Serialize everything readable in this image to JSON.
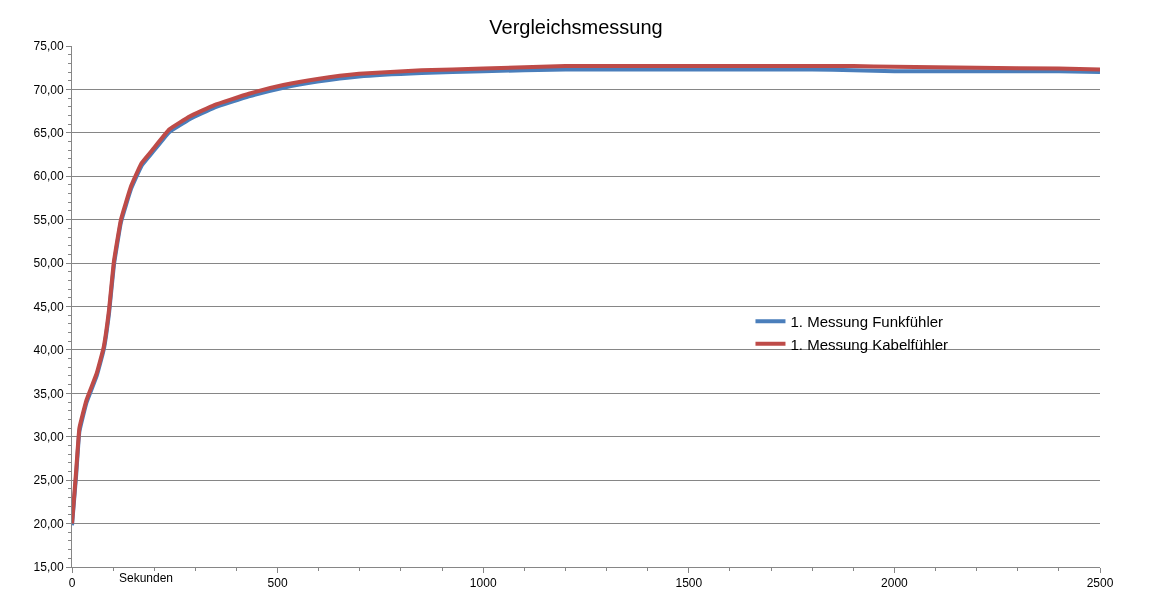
{
  "chart_data": {
    "type": "line",
    "title": "Vergleichsmessung",
    "xlabel": "Sekunden",
    "x": [
      0,
      10,
      18,
      35,
      60,
      77,
      90,
      102,
      119,
      144,
      169,
      195,
      237,
      287,
      346,
      430,
      514,
      597,
      698,
      850,
      1000,
      1200,
      1400,
      1600,
      1800,
      1900,
      2000,
      2200,
      2400,
      2500
    ],
    "series": [
      {
        "name": "1. Messung Funkfühler",
        "color": "#4a7ebb",
        "values": [
          19.8,
          25.5,
          30.6,
          33.9,
          37.0,
          40.0,
          44.2,
          49.8,
          54.7,
          58.6,
          61.2,
          62.7,
          65.1,
          66.6,
          67.9,
          69.2,
          70.2,
          70.9,
          71.5,
          71.9,
          72.1,
          72.3,
          72.3,
          72.3,
          72.3,
          72.2,
          72.1,
          72.1,
          72.1,
          72.0
        ]
      },
      {
        "name": "1. Messung Kabelfühler",
        "color": "#be4b48",
        "values": [
          20.0,
          26.0,
          31.0,
          34.2,
          37.3,
          40.3,
          44.6,
          50.2,
          55.0,
          58.9,
          61.5,
          63.0,
          65.4,
          66.9,
          68.2,
          69.5,
          70.5,
          71.2,
          71.8,
          72.2,
          72.4,
          72.7,
          72.7,
          72.7,
          72.7,
          72.7,
          72.6,
          72.5,
          72.4,
          72.3
        ]
      }
    ],
    "xlim": [
      0,
      2500
    ],
    "xticks": [
      0,
      500,
      1000,
      1500,
      2000,
      2500
    ],
    "ylim": [
      15,
      75
    ],
    "yticks": [
      {
        "value": 15,
        "label": "15,00"
      },
      {
        "value": 20,
        "label": "20,00"
      },
      {
        "value": 25,
        "label": "25,00"
      },
      {
        "value": 30,
        "label": "30,00"
      },
      {
        "value": 35,
        "label": "35,00"
      },
      {
        "value": 40,
        "label": "40,00"
      },
      {
        "value": 45,
        "label": "45,00"
      },
      {
        "value": 50,
        "label": "50,00"
      },
      {
        "value": 55,
        "label": "55,00"
      },
      {
        "value": 60,
        "label": "60,00"
      },
      {
        "value": 65,
        "label": "65,00"
      },
      {
        "value": 70,
        "label": "70,00"
      },
      {
        "value": 75,
        "label": "75,00"
      }
    ],
    "grid": "y",
    "legend": "right",
    "marker": "none",
    "line_style": "solid"
  }
}
